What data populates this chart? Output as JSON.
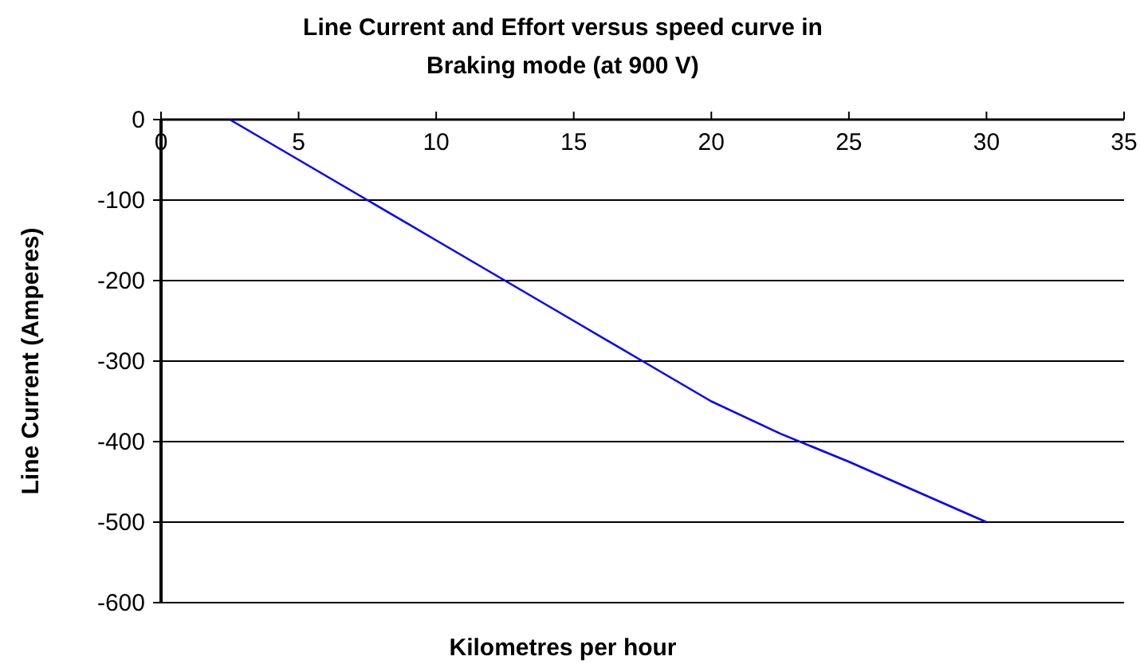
{
  "chart_data": {
    "type": "line",
    "title": "Line Current and Effort versus speed curve in Braking mode (at 900 V)",
    "xlabel": "Kilometres per hour",
    "ylabel": "Line Current (Amperes)",
    "x": [
      2.5,
      5,
      7.5,
      10,
      12.5,
      15,
      17.5,
      20,
      22.5,
      25,
      30
    ],
    "series": [
      {
        "color": "#0000ff",
        "values": [
          0,
          -50,
          -100,
          -150,
          -200,
          -250,
          -300,
          -350,
          -390,
          -425,
          -500
        ]
      }
    ],
    "xlim": [
      0,
      35
    ],
    "xticks": [
      0,
      5,
      10,
      15,
      20,
      25,
      30,
      35
    ],
    "ylim": [
      -600,
      0
    ],
    "yticks": [
      -600,
      -500,
      -400,
      -300,
      -200,
      -100,
      0
    ],
    "grid": "y",
    "marker": "none",
    "line_style": "solid"
  }
}
